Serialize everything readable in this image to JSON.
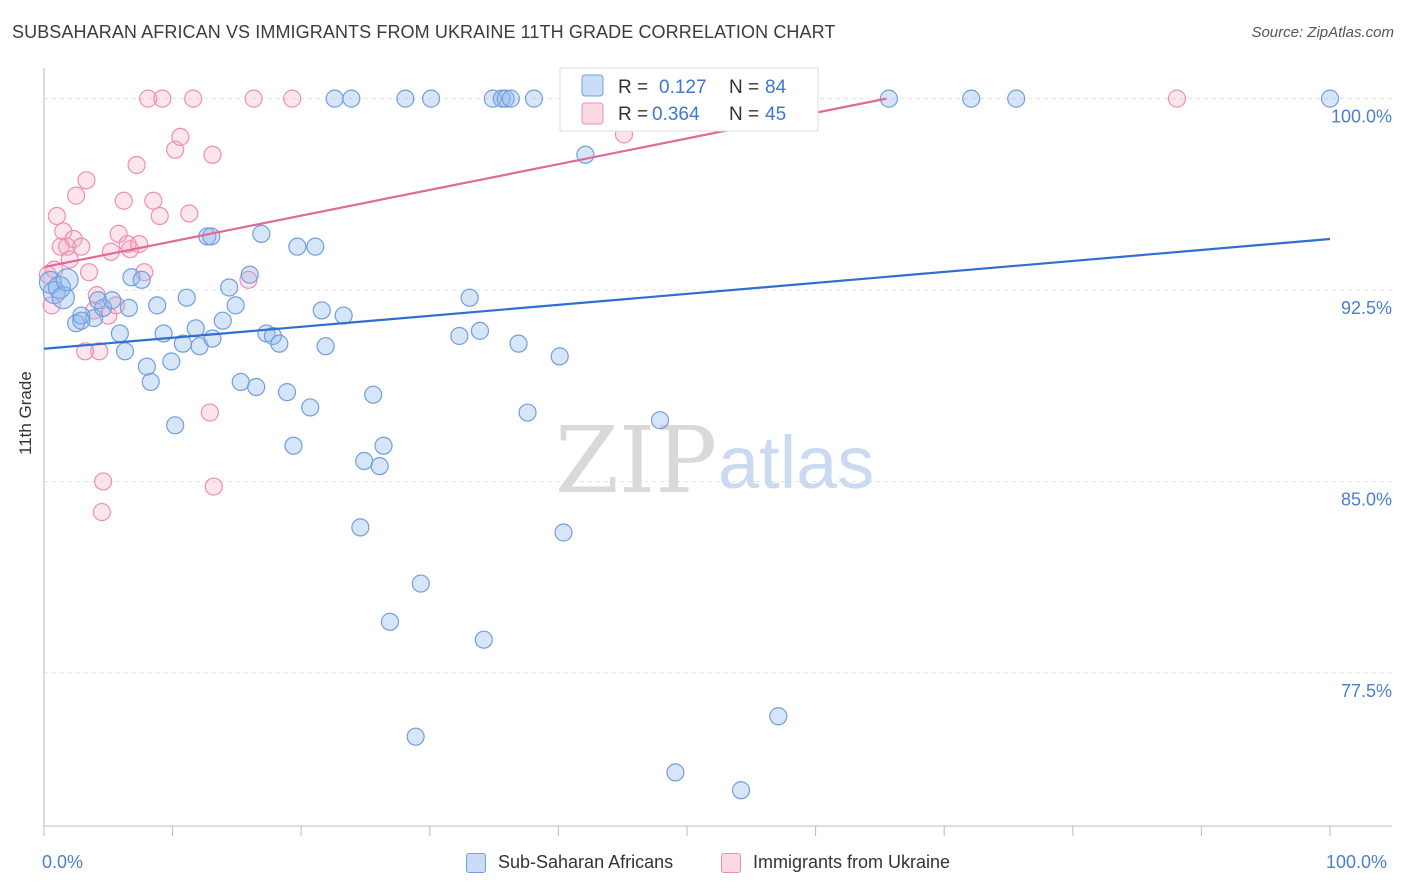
{
  "title": "SUBSAHARAN AFRICAN VS IMMIGRANTS FROM UKRAINE 11TH GRADE CORRELATION CHART",
  "source": "Source: ZipAtlas.com",
  "colors": {
    "blue": "#6f9fe0",
    "blue_fill": "rgba(140,180,235,0.35)",
    "blue_line": "#2f6fcf",
    "pink": "#ef8fb0",
    "pink_fill": "rgba(245,170,195,0.30)",
    "pink_line": "#e06a95",
    "tick_text": "#4a7fcf"
  },
  "watermark": {
    "zip": "ZIP",
    "atlas": "atlas"
  },
  "legend_top": [
    {
      "r_label": "R =",
      "r_value": "0.127",
      "n_label": "N =",
      "n_value": "84"
    },
    {
      "r_label": "R =",
      "r_value": "0.364",
      "n_label": "N =",
      "n_value": "45"
    }
  ],
  "legend_bottom": [
    {
      "label": "Sub-Saharan Africans"
    },
    {
      "label": "Immigrants from Ukraine"
    }
  ],
  "chart_data": {
    "type": "scatter",
    "title": "SUBSAHARAN AFRICAN VS IMMIGRANTS FROM UKRAINE 11TH GRADE CORRELATION CHART",
    "xlabel": "",
    "ylabel": "11th Grade",
    "xlim": [
      0,
      100
    ],
    "ylim": [
      71.5,
      101.2
    ],
    "x_tick_labels": [
      "0.0%",
      "100.0%"
    ],
    "y_ticks": [
      77.5,
      85.0,
      92.5,
      100.0
    ],
    "y_tick_labels": [
      "77.5%",
      "85.0%",
      "92.5%",
      "100.0%"
    ],
    "grid": "horizontal dashed",
    "legend": "top-center",
    "series": [
      {
        "name": "Sub-Saharan Africans",
        "trend": {
          "x": [
            0,
            100
          ],
          "y": [
            90.2,
            94.5
          ]
        },
        "points": [
          [
            0.5,
            92.8
          ],
          [
            0.8,
            92.4
          ],
          [
            1.2,
            92.6
          ],
          [
            1.5,
            92.2
          ],
          [
            1.8,
            92.9
          ],
          [
            2.5,
            91.2
          ],
          [
            2.9,
            91.5
          ],
          [
            3.9,
            91.4
          ],
          [
            4.6,
            91.8
          ],
          [
            5.3,
            92.1
          ],
          [
            5.9,
            90.8
          ],
          [
            6.3,
            90.1
          ],
          [
            6.6,
            91.8
          ],
          [
            6.8,
            93.0
          ],
          [
            7.6,
            92.9
          ],
          [
            8.0,
            89.5
          ],
          [
            8.3,
            88.9
          ],
          [
            8.8,
            91.9
          ],
          [
            9.3,
            90.8
          ],
          [
            9.9,
            89.7
          ],
          [
            10.2,
            87.2
          ],
          [
            10.8,
            90.4
          ],
          [
            11.1,
            92.2
          ],
          [
            11.8,
            91.0
          ],
          [
            12.1,
            90.3
          ],
          [
            12.7,
            94.6
          ],
          [
            13.1,
            90.6
          ],
          [
            13.9,
            91.3
          ],
          [
            14.4,
            92.6
          ],
          [
            14.9,
            91.9
          ],
          [
            15.3,
            88.9
          ],
          [
            16.0,
            93.1
          ],
          [
            16.5,
            88.7
          ],
          [
            16.9,
            94.7
          ],
          [
            17.3,
            90.8
          ],
          [
            17.8,
            90.7
          ],
          [
            18.3,
            90.4
          ],
          [
            18.9,
            88.5
          ],
          [
            19.4,
            86.4
          ],
          [
            19.7,
            94.2
          ],
          [
            20.7,
            87.9
          ],
          [
            21.1,
            94.2
          ],
          [
            21.6,
            91.7
          ],
          [
            21.9,
            90.3
          ],
          [
            22.6,
            100
          ],
          [
            23.3,
            91.5
          ],
          [
            23.9,
            100
          ],
          [
            24.6,
            83.2
          ],
          [
            24.9,
            85.8
          ],
          [
            25.6,
            88.4
          ],
          [
            26.1,
            85.6
          ],
          [
            26.4,
            86.4
          ],
          [
            26.9,
            79.5
          ],
          [
            28.1,
            100
          ],
          [
            28.9,
            75.0
          ],
          [
            29.3,
            81.0
          ],
          [
            30.1,
            100
          ],
          [
            32.3,
            90.7
          ],
          [
            33.1,
            92.2
          ],
          [
            33.9,
            90.9
          ],
          [
            34.2,
            78.8
          ],
          [
            34.9,
            100
          ],
          [
            35.6,
            100
          ],
          [
            35.9,
            100
          ],
          [
            36.3,
            100
          ],
          [
            36.9,
            90.4
          ],
          [
            37.6,
            87.7
          ],
          [
            38.1,
            100
          ],
          [
            40.1,
            89.9
          ],
          [
            40.4,
            83.0
          ],
          [
            42.1,
            97.8
          ],
          [
            47.9,
            87.4
          ],
          [
            49.1,
            73.6
          ],
          [
            51.6,
            100
          ],
          [
            54.2,
            72.9
          ],
          [
            57.1,
            75.8
          ],
          [
            65.7,
            100
          ],
          [
            72.1,
            100
          ],
          [
            75.6,
            100
          ],
          [
            100,
            100
          ],
          [
            43.0,
            100
          ],
          [
            13.0,
            94.6
          ],
          [
            4.2,
            92.1
          ],
          [
            2.9,
            91.3
          ]
        ]
      },
      {
        "name": "Immigrants from Ukraine",
        "trend": {
          "x": [
            0,
            65.5
          ],
          "y": [
            93.4,
            100
          ]
        },
        "points": [
          [
            0.3,
            93.1
          ],
          [
            0.6,
            91.9
          ],
          [
            0.8,
            93.3
          ],
          [
            1.0,
            95.4
          ],
          [
            1.3,
            94.2
          ],
          [
            1.5,
            94.8
          ],
          [
            1.8,
            94.2
          ],
          [
            2.0,
            93.7
          ],
          [
            2.3,
            94.5
          ],
          [
            2.5,
            96.2
          ],
          [
            2.9,
            94.2
          ],
          [
            3.2,
            90.1
          ],
          [
            3.3,
            96.8
          ],
          [
            3.5,
            93.2
          ],
          [
            3.9,
            91.7
          ],
          [
            4.1,
            92.3
          ],
          [
            4.3,
            90.1
          ],
          [
            4.5,
            83.8
          ],
          [
            4.6,
            85.0
          ],
          [
            5.0,
            91.5
          ],
          [
            5.2,
            94.0
          ],
          [
            5.6,
            91.9
          ],
          [
            5.8,
            94.7
          ],
          [
            6.2,
            96.0
          ],
          [
            6.5,
            94.3
          ],
          [
            6.7,
            94.1
          ],
          [
            7.2,
            97.4
          ],
          [
            7.4,
            94.3
          ],
          [
            7.8,
            93.2
          ],
          [
            8.1,
            100
          ],
          [
            8.5,
            96.0
          ],
          [
            9.0,
            95.4
          ],
          [
            9.2,
            100
          ],
          [
            10.2,
            98.0
          ],
          [
            10.6,
            98.5
          ],
          [
            11.3,
            95.5
          ],
          [
            11.6,
            100
          ],
          [
            12.9,
            87.7
          ],
          [
            13.1,
            97.8
          ],
          [
            13.2,
            84.8
          ],
          [
            15.9,
            92.9
          ],
          [
            16.3,
            100
          ],
          [
            19.3,
            100
          ],
          [
            45.1,
            98.6
          ],
          [
            88.1,
            100
          ]
        ]
      }
    ]
  }
}
